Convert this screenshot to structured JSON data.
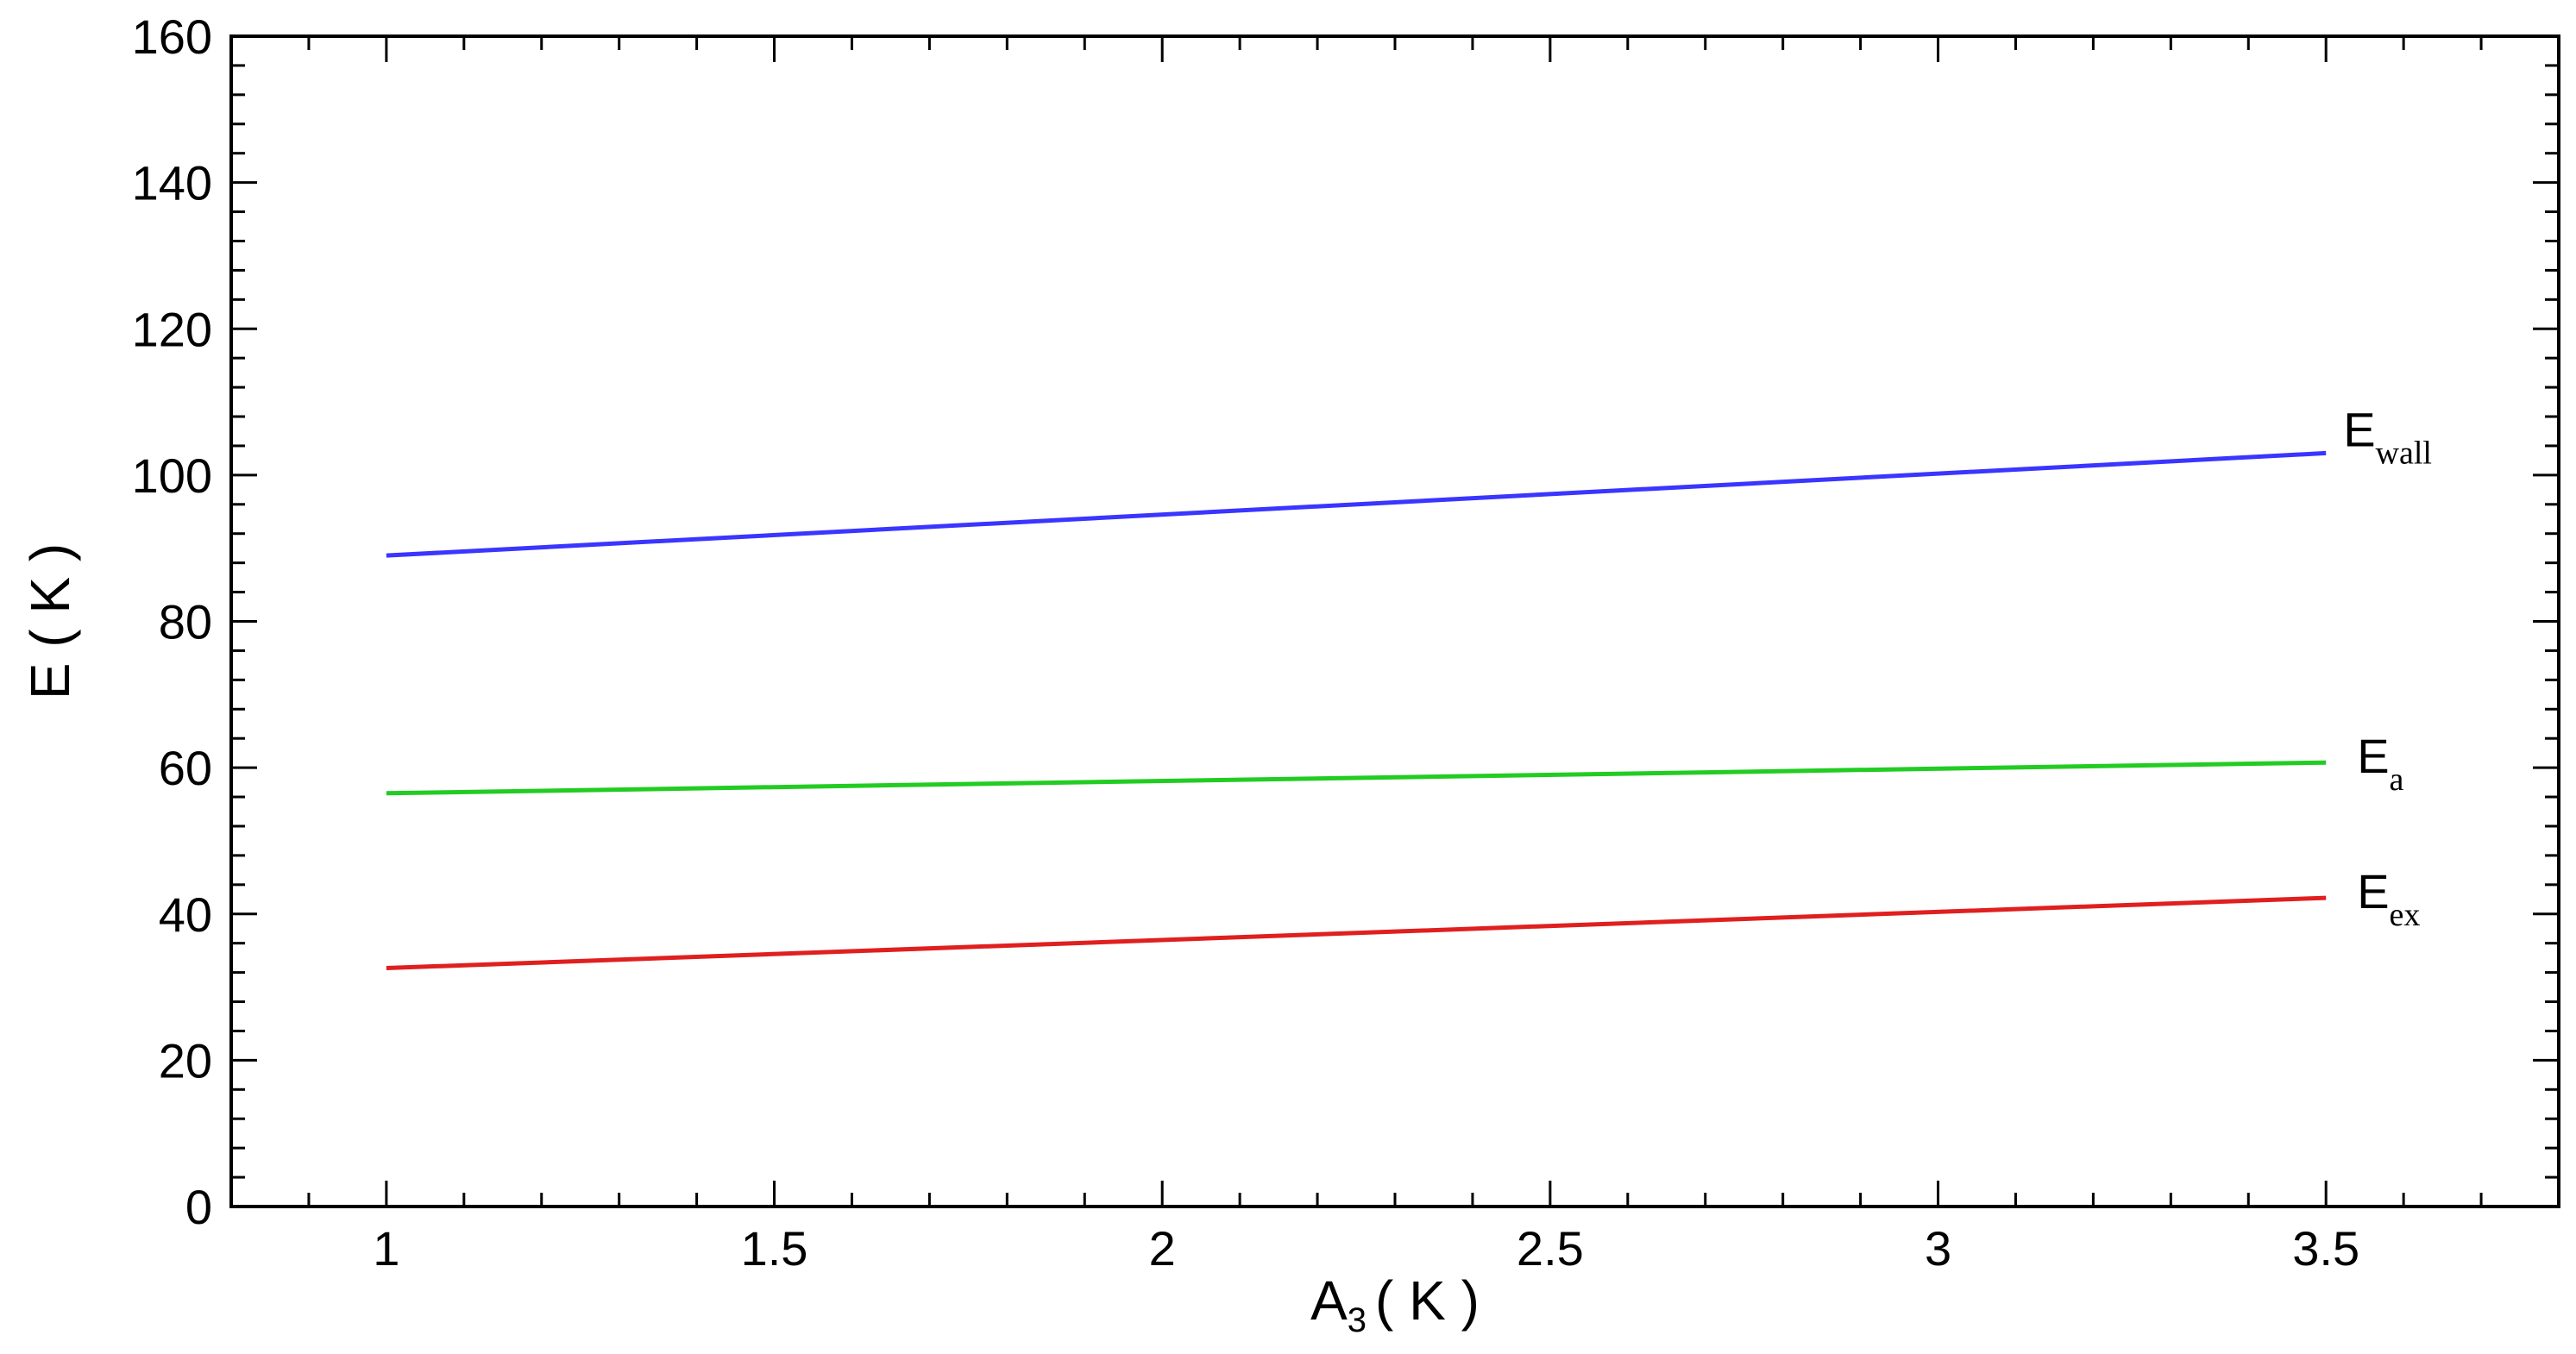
{
  "chart_data": {
    "type": "line",
    "xlabel": {
      "main": "A",
      "sub": "3",
      "unit": "( K )"
    },
    "ylabel": "E ( K )",
    "xlim": [
      0.8,
      3.8
    ],
    "ylim": [
      0,
      160
    ],
    "x_ticks": [
      1,
      1.5,
      2,
      2.5,
      3,
      3.5
    ],
    "x_tick_labels": [
      "1",
      "1.5",
      "2",
      "2.5",
      "3",
      "3.5"
    ],
    "y_ticks": [
      0,
      20,
      40,
      60,
      80,
      100,
      120,
      140,
      160
    ],
    "y_tick_labels": [
      "0",
      "20",
      "40",
      "60",
      "80",
      "100",
      "120",
      "140",
      "160"
    ],
    "grid": false,
    "series": [
      {
        "label_main": "E",
        "label_sub": "wall",
        "color": "#3a35ff",
        "x": [
          1,
          3.5
        ],
        "y": [
          89,
          103
        ]
      },
      {
        "label_main": "E",
        "label_sub": "a",
        "color": "#22cc22",
        "x": [
          1,
          3.5
        ],
        "y": [
          56.5,
          60.7
        ]
      },
      {
        "label_main": "E",
        "label_sub": "ex",
        "color": "#e01f1f",
        "x": [
          1,
          3.5
        ],
        "y": [
          32.6,
          42.2
        ]
      }
    ]
  }
}
